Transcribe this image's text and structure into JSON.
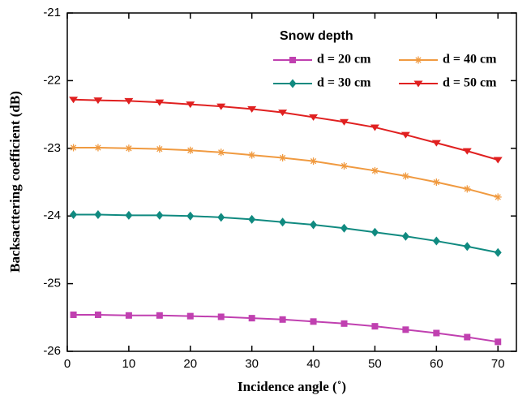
{
  "chart_data": {
    "type": "line",
    "x_label": "Incidence angle (˚)",
    "y_label": "Backsacttering coefficient (dB)",
    "legend_title": "Snow depth",
    "x": [
      1,
      5,
      10,
      15,
      20,
      25,
      30,
      35,
      40,
      45,
      50,
      55,
      60,
      65,
      70
    ],
    "series": [
      {
        "name": "d = 20 cm",
        "color": "#c040b0",
        "marker": "square",
        "values": [
          -25.46,
          -25.46,
          -25.47,
          -25.47,
          -25.48,
          -25.49,
          -25.51,
          -25.53,
          -25.56,
          -25.59,
          -25.63,
          -25.68,
          -25.73,
          -25.79,
          -25.86
        ]
      },
      {
        "name": "d = 30 cm",
        "color": "#108a80",
        "marker": "diamond",
        "values": [
          -23.98,
          -23.98,
          -23.99,
          -23.99,
          -24.0,
          -24.02,
          -24.05,
          -24.09,
          -24.13,
          -24.18,
          -24.24,
          -24.3,
          -24.37,
          -24.45,
          -24.54
        ]
      },
      {
        "name": "d = 40 cm",
        "color": "#f09a40",
        "marker": "star",
        "values": [
          -22.99,
          -22.99,
          -23.0,
          -23.01,
          -23.03,
          -23.06,
          -23.1,
          -23.14,
          -23.19,
          -23.26,
          -23.33,
          -23.41,
          -23.5,
          -23.6,
          -23.72
        ]
      },
      {
        "name": "d = 50 cm",
        "color": "#e02020",
        "marker": "triangle-down",
        "values": [
          -22.28,
          -22.29,
          -22.3,
          -22.32,
          -22.35,
          -22.38,
          -22.42,
          -22.47,
          -22.54,
          -22.61,
          -22.69,
          -22.8,
          -22.92,
          -23.04,
          -23.17
        ]
      }
    ],
    "xlim": [
      0,
      73
    ],
    "xticks": [
      0,
      10,
      20,
      30,
      40,
      50,
      60,
      70
    ],
    "ylim": [
      -26,
      -21
    ],
    "yticks": [
      -26,
      -25,
      -24,
      -23,
      -22,
      -21
    ],
    "legend_position": "upper right"
  }
}
